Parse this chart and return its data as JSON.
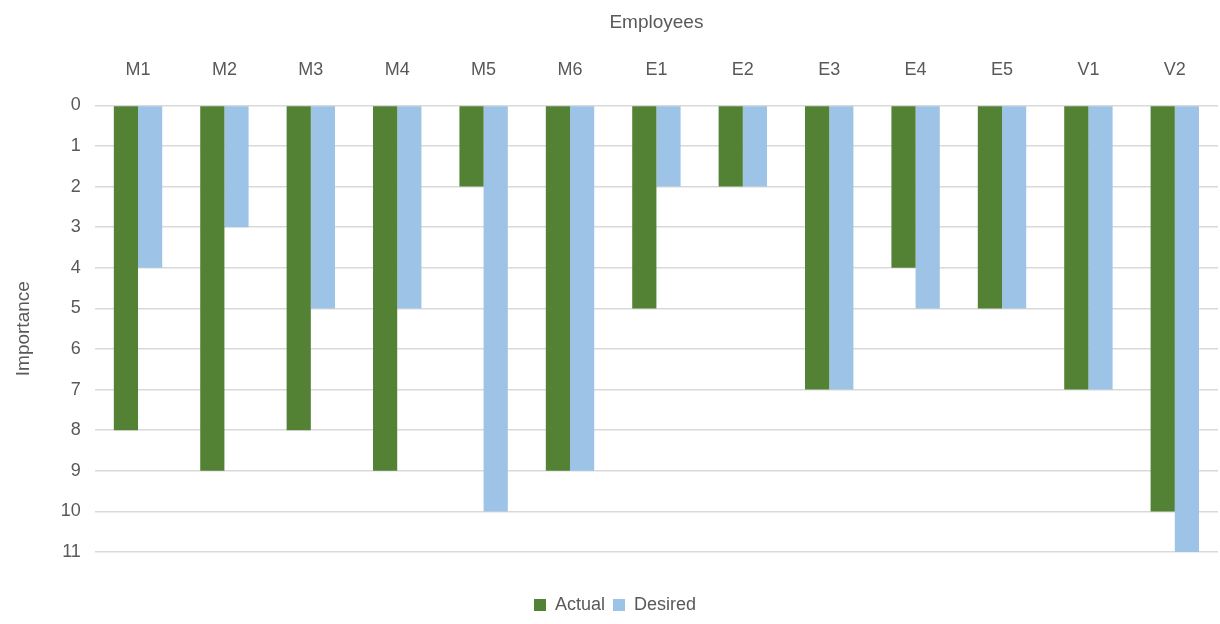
{
  "chart_data": {
    "type": "bar",
    "xlabel": "Employees",
    "ylabel": "Importance",
    "categories": [
      "M1",
      "M2",
      "M3",
      "M4",
      "M5",
      "M6",
      "E1",
      "E2",
      "E3",
      "E4",
      "E5",
      "V1",
      "V2"
    ],
    "series": [
      {
        "name": "Actual",
        "color": "#548235",
        "values": [
          8,
          9,
          8,
          9,
          2,
          9,
          5,
          2,
          7,
          4,
          5,
          7,
          10
        ]
      },
      {
        "name": "Desired",
        "color": "#9dc3e6",
        "values": [
          4,
          3,
          5,
          5,
          10,
          9,
          2,
          2,
          7,
          5,
          5,
          7,
          11
        ]
      }
    ],
    "ylim": [
      11,
      0
    ],
    "yticks": [
      0,
      1,
      2,
      3,
      4,
      5,
      6,
      7,
      8,
      9,
      10,
      11
    ],
    "grid": "y",
    "legend": "bottom"
  }
}
